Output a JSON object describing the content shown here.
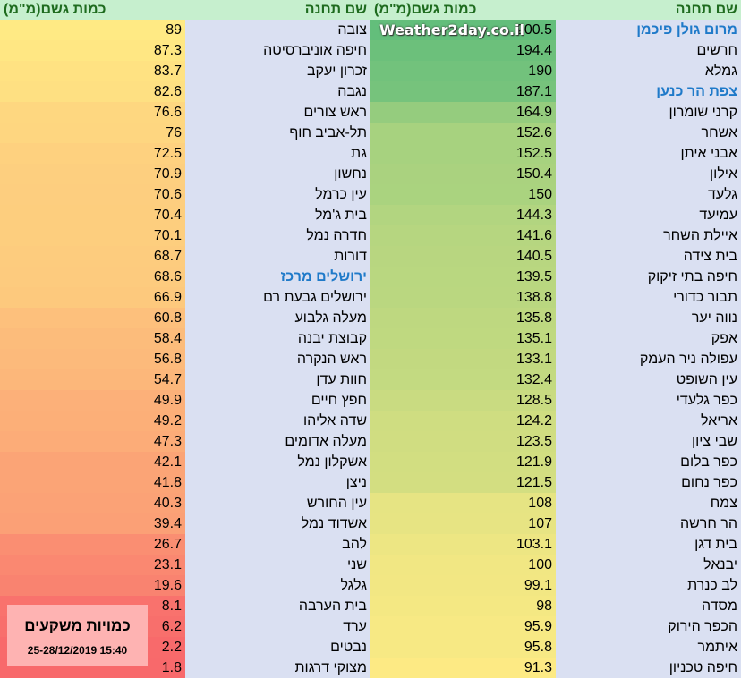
{
  "header": {
    "station": "שם תחנה",
    "rain": "כמות גשם(מ\"מ)"
  },
  "watermark": "Weather2day.co.il",
  "info_box": {
    "title": "כמויות משקעים",
    "date": "25-28/12/2019 15:40"
  },
  "colors": {
    "max": "#63be7b",
    "mid": "#ffeb84",
    "min": "#f8696b",
    "name_bg": "#dae0f2",
    "header_bg": "#c6efce",
    "highlight_name": "#1f7ac9"
  },
  "right_table": [
    {
      "name": "מרום גולן פיכמן",
      "value": 200.5,
      "highlight": true
    },
    {
      "name": "חרשים",
      "value": 194.4
    },
    {
      "name": "גמלא",
      "value": 190
    },
    {
      "name": "צפת הר כנען",
      "value": 187.1,
      "highlight": true
    },
    {
      "name": "קרני שומרון",
      "value": 164.9
    },
    {
      "name": "אשחר",
      "value": 152.6
    },
    {
      "name": "אבני איתן",
      "value": 152.5
    },
    {
      "name": "אילון",
      "value": 150.4
    },
    {
      "name": "גלעד",
      "value": 150
    },
    {
      "name": "עמיעד",
      "value": 144.3
    },
    {
      "name": "איילת השחר",
      "value": 141.6
    },
    {
      "name": "בית צידה",
      "value": 140.5
    },
    {
      "name": "חיפה בתי זיקוק",
      "value": 139.5
    },
    {
      "name": "תבור כדורי",
      "value": 138.8
    },
    {
      "name": "נווה יער",
      "value": 135.8
    },
    {
      "name": "אפק",
      "value": 135.1
    },
    {
      "name": "עפולה ניר העמק",
      "value": 133.1
    },
    {
      "name": "עין השופט",
      "value": 132.4
    },
    {
      "name": "כפר גלעדי",
      "value": 128.5
    },
    {
      "name": "אריאל",
      "value": 124.2
    },
    {
      "name": "שבי ציון",
      "value": 123.5
    },
    {
      "name": "כפר בלום",
      "value": 121.9
    },
    {
      "name": "כפר נחום",
      "value": 121.5
    },
    {
      "name": "צמח",
      "value": 108
    },
    {
      "name": "הר חרשה",
      "value": 107
    },
    {
      "name": "בית דגן",
      "value": 103.1
    },
    {
      "name": "יבנאל",
      "value": 100
    },
    {
      "name": "לב כנרת",
      "value": 99.1
    },
    {
      "name": "מסדה",
      "value": 98
    },
    {
      "name": "הכפר הירוק",
      "value": 95.9
    },
    {
      "name": "איתמר",
      "value": 95.8
    },
    {
      "name": "חיפה טכניון",
      "value": 91.3
    }
  ],
  "left_table": [
    {
      "name": "צובה",
      "value": 89
    },
    {
      "name": "חיפה אוניברסיטה",
      "value": 87.3
    },
    {
      "name": "זכרון יעקב",
      "value": 83.7
    },
    {
      "name": "נגבה",
      "value": 82.6
    },
    {
      "name": "ראש צורים",
      "value": 76.6
    },
    {
      "name": "תל-אביב חוף",
      "value": 76
    },
    {
      "name": "גת",
      "value": 72.5
    },
    {
      "name": "נחשון",
      "value": 70.9
    },
    {
      "name": "עין כרמל",
      "value": 70.6
    },
    {
      "name": "בית ג'מל",
      "value": 70.4
    },
    {
      "name": "חדרה נמל",
      "value": 70.1
    },
    {
      "name": "דורות",
      "value": 68.7
    },
    {
      "name": "ירושלים מרכז",
      "value": 68.6,
      "highlight": true
    },
    {
      "name": "ירושלים גבעת רם",
      "value": 66.9
    },
    {
      "name": "מעלה גלבוע",
      "value": 60.8
    },
    {
      "name": "קבוצת יבנה",
      "value": 58.4
    },
    {
      "name": "ראש הנקרה",
      "value": 56.8
    },
    {
      "name": "חוות עדן",
      "value": 54.7
    },
    {
      "name": "חפץ חיים",
      "value": 49.9
    },
    {
      "name": "שדה אליהו",
      "value": 49.2
    },
    {
      "name": "מעלה אדומים",
      "value": 47.3
    },
    {
      "name": "אשקלון נמל",
      "value": 42.1
    },
    {
      "name": "ניצן",
      "value": 41.8
    },
    {
      "name": "עין החורש",
      "value": 40.3
    },
    {
      "name": "אשדוד נמל",
      "value": 39.4
    },
    {
      "name": "להב",
      "value": 26.7
    },
    {
      "name": "שני",
      "value": 23.1
    },
    {
      "name": "גלגל",
      "value": 19.6
    },
    {
      "name": "בית הערבה",
      "value": 8.1
    },
    {
      "name": "ערד",
      "value": 6.2
    },
    {
      "name": "נבטים",
      "value": 2.2
    },
    {
      "name": "מצוקי דרגות",
      "value": 1.8
    }
  ]
}
